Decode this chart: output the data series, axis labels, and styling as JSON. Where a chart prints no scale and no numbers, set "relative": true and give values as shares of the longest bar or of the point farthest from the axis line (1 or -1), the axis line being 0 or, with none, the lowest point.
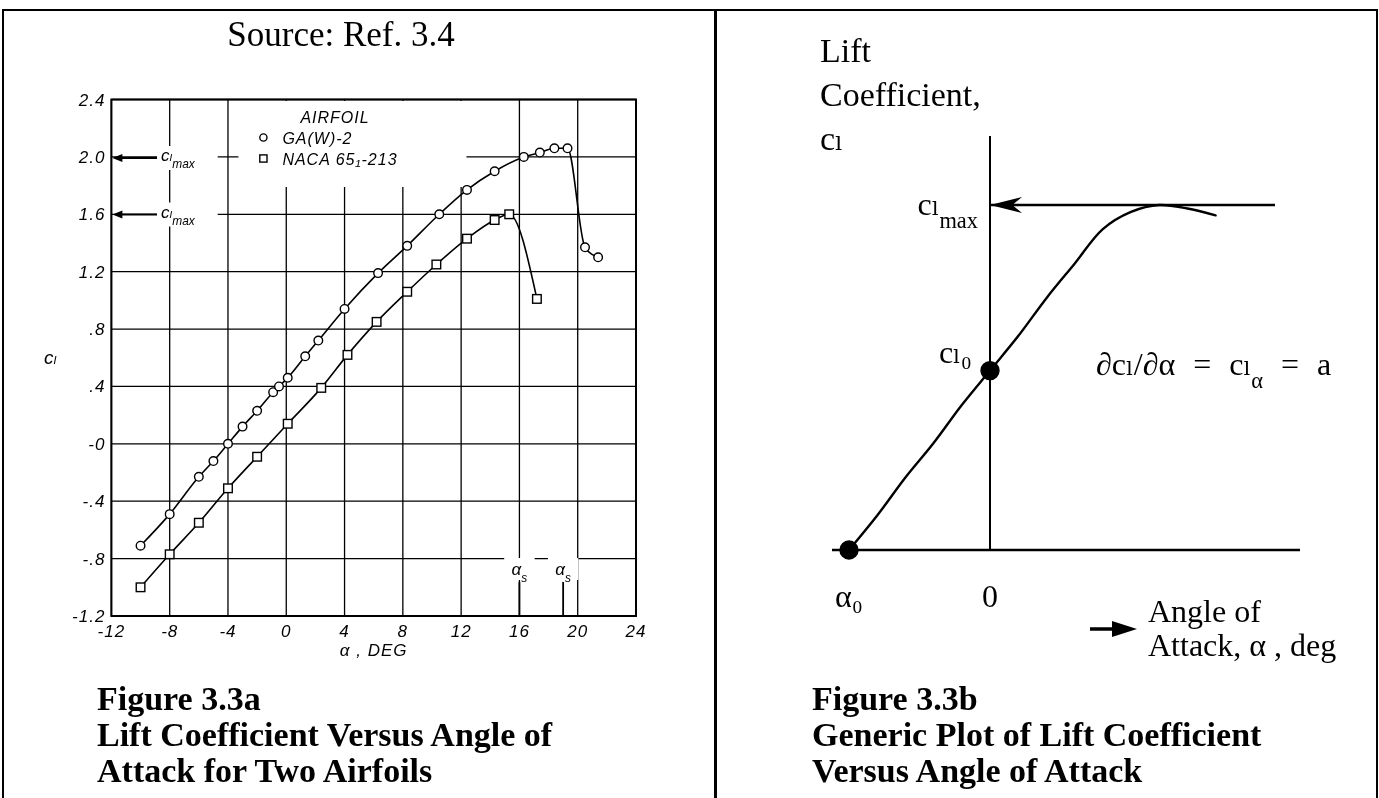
{
  "chart_data": [
    {
      "type": "line",
      "title": "Figure 3.3a",
      "subtitle": "Lift Coefficient Versus Angle of Attack for Two Airfoils",
      "xlabel": "α , DEG",
      "ylabel": "cₗ",
      "legend_title": "AIRFOIL",
      "legend": "top left",
      "grid": true,
      "line_style": "solid",
      "annotations": [
        "Source: Ref. 3.4",
        "cₗ$_{max}$",
        "cₗ$_{max}$"
      ],
      "xlim": [
        -12,
        24
      ],
      "xticks": [
        -12,
        -8,
        -4,
        0,
        4,
        8,
        12,
        16,
        20,
        24
      ],
      "ylim": [
        -1.2,
        2.4
      ],
      "yticks": [
        -1.2,
        {
          "value": -0.8,
          "label": "-.8"
        },
        {
          "value": -0.4,
          "label": "-.4"
        },
        {
          "value": 0,
          "label": "-0"
        },
        {
          "value": 0.4,
          "label": ".4"
        },
        {
          "value": 0.8,
          "label": ".8"
        },
        1.2,
        1.6,
        {
          "value": 2,
          "label": "2.0"
        },
        2.4
      ],
      "ref_lines": [
        {
          "axis": "x",
          "value": 16,
          "label": "α$_{s}$"
        },
        {
          "axis": "x",
          "value": 19,
          "label": "α$_{s}$"
        }
      ],
      "series": [
        {
          "name": "GA(W)-2",
          "color": "#000000",
          "marker": "circle",
          "x": [
            -10,
            -8,
            -6,
            -5,
            -4,
            -3,
            -2,
            -0.9,
            -0.5,
            0.1,
            1.3,
            2.2,
            4,
            6.3,
            8.3,
            10.5,
            12.4,
            14.3,
            16.3,
            17.4,
            18.4,
            19.3,
            20.5,
            21.4
          ],
          "values": [
            -0.71,
            -0.49,
            -0.23,
            -0.12,
            0,
            0.12,
            0.23,
            0.36,
            0.4,
            0.46,
            0.61,
            0.72,
            0.94,
            1.19,
            1.38,
            1.6,
            1.77,
            1.9,
            2,
            2.03,
            2.06,
            2.06,
            1.37,
            1.3
          ]
        },
        {
          "name": "NACA 65₁-213",
          "color": "#000000",
          "marker": "square",
          "x": [
            -10,
            -8,
            -6,
            -4,
            -2,
            0.1,
            2.4,
            4.2,
            6.2,
            8.3,
            10.3,
            12.4,
            14.3,
            15.3,
            17.2
          ],
          "values": [
            -1,
            -0.77,
            -0.55,
            -0.31,
            -0.09,
            0.14,
            0.39,
            0.62,
            0.85,
            1.06,
            1.25,
            1.43,
            1.56,
            1.6,
            1.01
          ]
        }
      ]
    },
    {
      "type": "line",
      "relative": true,
      "title": "Figure 3.3b",
      "subtitle": "Generic Plot of Lift Coefficient Versus Angle of Attack",
      "xlabel": "Angle of Attack, α , deg",
      "ylabel": "Lift Coefficient, cₗ",
      "categories": [
        "α₀",
        null,
        null,
        null,
        null,
        "0",
        null,
        null,
        null,
        null,
        null,
        null,
        null,
        null
      ],
      "ref_lines": [
        {
          "axis": "y",
          "value": 1,
          "label": "cₗ$_{max}$"
        }
      ],
      "annotations": [
        {
          "text": "cₗ₀",
          "x": "0",
          "y": 0.52
        },
        "∂cₗ/∂α = cₗ$_{α}$ = a"
      ],
      "series": [
        {
          "type": "line",
          "color": "#000000",
          "marker": "none",
          "values": [
            0,
            0.1,
            0.21,
            0.31,
            0.42,
            0.52,
            0.62,
            0.73,
            0.83,
            0.93,
            0.98,
            1,
            0.99,
            0.97
          ]
        },
        {
          "type": "scatter",
          "color": "#000000",
          "marker": "circle",
          "values": [
            0,
            null,
            null,
            null,
            null,
            0.52,
            null,
            null,
            null,
            null,
            null,
            null,
            null,
            null
          ]
        }
      ]
    }
  ]
}
